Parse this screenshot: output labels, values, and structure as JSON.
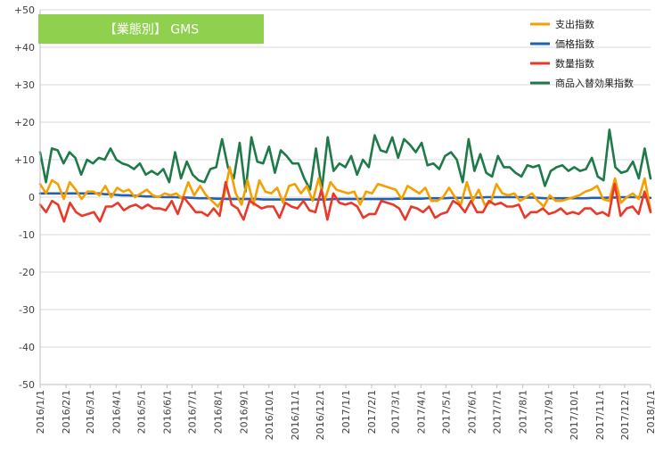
{
  "chart_data": {
    "type": "line",
    "title": "【業態別】 GMS",
    "title_box_color": "#8fd14f",
    "grid": true,
    "legend_position": "top-right",
    "ylim": [
      -50,
      50
    ],
    "y_ticks": [
      {
        "value": 50,
        "label": "+50"
      },
      {
        "value": 40,
        "label": "+40"
      },
      {
        "value": 30,
        "label": "+30"
      },
      {
        "value": 20,
        "label": "+20"
      },
      {
        "value": 10,
        "label": "+10"
      },
      {
        "value": 0,
        "label": "0"
      },
      {
        "value": -10,
        "label": "-10"
      },
      {
        "value": -20,
        "label": "-20"
      },
      {
        "value": -30,
        "label": "-30"
      },
      {
        "value": -40,
        "label": "-40"
      },
      {
        "value": -50,
        "label": "-50"
      }
    ],
    "x_ticks": [
      "2016/1/1",
      "2016/2/1",
      "2016/3/1",
      "2016/4/1",
      "2016/5/1",
      "2016/6/1",
      "2016/7/1",
      "2016/8/1",
      "2016/9/1",
      "2016/10/1",
      "2016/11/1",
      "2016/12/1",
      "2017/1/1",
      "2017/2/1",
      "2017/3/1",
      "2017/4/1",
      "2017/5/1",
      "2017/6/1",
      "2017/7/1",
      "2017/8/1",
      "2017/9/1",
      "2017/10/1",
      "2017/11/1",
      "2017/12/1",
      "2018/1/1"
    ],
    "x_start": "2016/1/1",
    "x_end": "2018/1/1",
    "sampling": "weekly",
    "series": [
      {
        "name": "支出指数",
        "color": "#f5a000",
        "values": [
          3.5,
          1,
          4.5,
          3.5,
          -0.5,
          4,
          2,
          -0.5,
          1.5,
          1.5,
          0.5,
          3,
          0,
          2.5,
          1.5,
          2,
          0,
          1,
          2,
          0.5,
          0,
          1,
          0.5,
          1,
          -0.5,
          4,
          0.5,
          3,
          0.5,
          -1,
          -2.5,
          0,
          8,
          1,
          -2,
          4.5,
          -2,
          4.5,
          1.5,
          1,
          2.5,
          -1.5,
          3,
          3.5,
          1,
          3,
          -1,
          5,
          -1,
          4,
          2,
          1.5,
          1,
          1.5,
          -2,
          1.5,
          1,
          3.5,
          3,
          2.5,
          2,
          -0.5,
          3,
          2,
          1,
          2.5,
          -1,
          -1,
          0,
          2.5,
          0,
          -2,
          4,
          -1,
          2,
          -2,
          -1.5,
          3.5,
          1,
          0.5,
          1,
          -1,
          0,
          1,
          -1,
          -2.5,
          0.5,
          -1,
          -1,
          -0.5,
          0,
          0.5,
          1.5,
          2,
          3,
          -0.5,
          -1,
          5,
          -1.5,
          0,
          1,
          -0.5,
          5,
          -3.5
        ]
      },
      {
        "name": "価格指数",
        "color": "#2060b0",
        "values": [
          1,
          1,
          1,
          1,
          1,
          1,
          1,
          1,
          1,
          1,
          1,
          0.8,
          0.8,
          0.6,
          0.5,
          0.5,
          0.4,
          0.3,
          0.2,
          0.2,
          0.1,
          0,
          0,
          0,
          -0.1,
          -0.1,
          -0.2,
          -0.3,
          -0.3,
          -0.3,
          -0.4,
          -0.4,
          -0.5,
          -0.5,
          -0.5,
          -0.5,
          -0.5,
          -0.5,
          -0.6,
          -0.6,
          -0.6,
          -0.6,
          -0.6,
          -0.6,
          -0.6,
          -0.6,
          -0.6,
          -0.6,
          -0.6,
          -0.6,
          -0.5,
          -0.5,
          -0.5,
          -0.5,
          -0.5,
          -0.5,
          -0.5,
          -0.5,
          -0.5,
          -0.5,
          -0.5,
          -0.4,
          -0.4,
          -0.4,
          -0.4,
          -0.4,
          -0.3,
          -0.3,
          -0.3,
          -0.3,
          -0.2,
          -0.2,
          -0.2,
          -0.2,
          -0.1,
          -0.1,
          0,
          0,
          0,
          0,
          0,
          0,
          0,
          -0.1,
          -0.1,
          -0.2,
          -0.3,
          -0.3,
          -0.3,
          -0.3,
          -0.3,
          -0.3,
          -0.3,
          -0.3,
          -0.2,
          -0.2,
          -0.2,
          -0.1,
          -0.1,
          0,
          0,
          0,
          0,
          0,
          -0.2
        ]
      },
      {
        "name": "数量指数",
        "color": "#e8392a",
        "values": [
          -2,
          -4,
          -1,
          -2,
          -6.5,
          -1.5,
          -4,
          -5,
          -4.5,
          -4,
          -6.5,
          -2.5,
          -2.5,
          -1.5,
          -3.5,
          -2.5,
          -2,
          -3,
          -2,
          -3,
          -3,
          -3.5,
          -1,
          -4.5,
          0,
          -2,
          -4,
          -4,
          -5,
          -3,
          -5,
          4,
          -2,
          -3,
          -6,
          -1,
          -2,
          -3,
          -2.5,
          -2.5,
          -5.5,
          -1.5,
          -2.5,
          -3,
          -1,
          -3.5,
          -4,
          2,
          -6,
          1,
          -1.5,
          -2,
          -1.5,
          -2.5,
          -5.5,
          -4.5,
          -4.5,
          -1,
          -1.5,
          -2,
          -3,
          -6,
          -2.5,
          -3,
          -4,
          -2.5,
          -5.5,
          -4.5,
          -4,
          -1,
          -2,
          -4,
          -1,
          -4,
          -4,
          -1,
          -2,
          -1.5,
          -2.5,
          -2.5,
          -2,
          -5.5,
          -4,
          -4,
          -3,
          -4.5,
          -4,
          -3,
          -4.5,
          -4,
          -4.5,
          -3,
          -3,
          -4.5,
          -4,
          -5,
          3.5,
          -5,
          -3,
          -2.5,
          -4.5,
          1.5,
          -4
        ]
      },
      {
        "name": "商品入替効果指数",
        "color": "#1e7a48",
        "values": [
          12,
          4,
          13,
          12.5,
          9,
          12,
          10.5,
          6,
          10,
          9,
          10.5,
          10,
          13,
          10,
          9,
          8.5,
          7.5,
          9,
          6,
          7,
          6,
          7.5,
          4,
          12,
          5,
          9.5,
          6,
          4.5,
          4,
          7.5,
          8,
          15.5,
          8,
          5,
          14.5,
          1.5,
          16,
          9.5,
          9,
          13.5,
          6.5,
          12.5,
          11,
          9,
          9,
          5,
          2,
          13,
          2,
          16,
          7,
          9,
          8,
          11,
          6,
          10,
          8,
          16.5,
          12.5,
          12,
          16,
          10.5,
          15.5,
          14,
          12,
          14.5,
          8.5,
          9,
          7.5,
          11,
          12,
          10,
          4,
          15.5,
          7,
          11.5,
          6.5,
          5.5,
          11,
          8,
          8,
          6.5,
          5.5,
          8.5,
          8,
          8.5,
          3,
          7,
          8,
          8.5,
          7,
          8,
          7,
          7.5,
          10.5,
          5.5,
          4.5,
          18,
          8,
          6.5,
          7,
          9.5,
          5,
          13,
          5
        ]
      }
    ]
  }
}
